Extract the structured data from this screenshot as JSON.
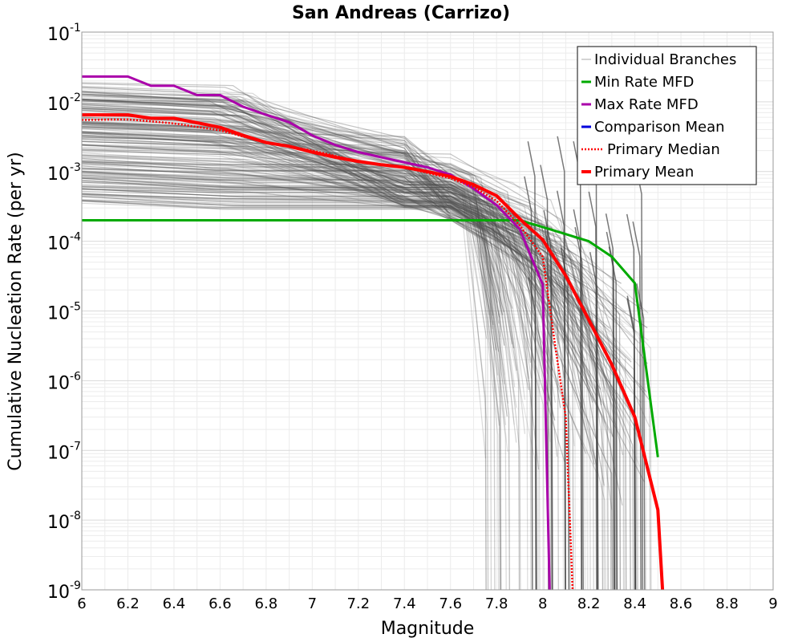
{
  "chart_data": {
    "type": "line",
    "title": "San Andreas (Carrizo)",
    "xlabel": "Magnitude",
    "ylabel": "Cumulative Nucleation Rate (per yr)",
    "yscale": "log",
    "xlim": [
      6,
      9
    ],
    "ylim": [
      1e-09,
      0.1
    ],
    "xticks": [
      "6",
      "6.2",
      "6.4",
      "6.6",
      "6.8",
      "7",
      "7.2",
      "7.4",
      "7.6",
      "7.8",
      "8",
      "8.2",
      "8.4",
      "8.6",
      "8.8",
      "9"
    ],
    "yticks": [
      {
        "base": "10",
        "exp": "-1"
      },
      {
        "base": "10",
        "exp": "-2"
      },
      {
        "base": "10",
        "exp": "-3"
      },
      {
        "base": "10",
        "exp": "-4"
      },
      {
        "base": "10",
        "exp": "-5"
      },
      {
        "base": "10",
        "exp": "-6"
      },
      {
        "base": "10",
        "exp": "-7"
      },
      {
        "base": "10",
        "exp": "-8"
      },
      {
        "base": "10",
        "exp": "-9"
      }
    ],
    "legend": {
      "position": "top-right",
      "entries": [
        "Individual Branches",
        "Min Rate MFD",
        "Max Rate MFD",
        "Comparison Mean",
        "Primary Median",
        "Primary Mean"
      ]
    },
    "branches_note": "Individual Branches: many grey logic-tree branch curves, rates ~3e-4 to 2e-2 at M6, falling off between M7.7 and M8.5",
    "series": [
      {
        "name": "Min Rate MFD",
        "color": "#00aa00",
        "style": "solid",
        "x": [
          6.0,
          7.9,
          8.0,
          8.2,
          8.3,
          8.4,
          8.5
        ],
        "y": [
          0.0002,
          0.0002,
          0.00016,
          0.0001,
          6e-05,
          2.5e-05,
          8e-08
        ]
      },
      {
        "name": "Max Rate MFD",
        "color": "#aa00aa",
        "style": "solid",
        "x": [
          6.0,
          6.2,
          6.3,
          6.4,
          6.5,
          6.6,
          6.7,
          6.8,
          6.9,
          7.0,
          7.1,
          7.2,
          7.3,
          7.4,
          7.5,
          7.6,
          7.7,
          7.8,
          7.9,
          8.0,
          8.03
        ],
        "y": [
          0.023,
          0.023,
          0.017,
          0.017,
          0.0125,
          0.0125,
          0.0085,
          0.0065,
          0.0051,
          0.0033,
          0.0024,
          0.0019,
          0.0016,
          0.00135,
          0.00115,
          0.0009,
          0.00057,
          0.00033,
          0.00015,
          2.4e-05,
          1e-09
        ]
      },
      {
        "name": "Comparison Mean",
        "color": "#0000dd",
        "style": "solid",
        "x": [],
        "y": []
      },
      {
        "name": "Primary Median",
        "color": "#ff0000",
        "style": "dotted",
        "x": [
          6.0,
          6.2,
          6.4,
          6.6,
          6.8,
          7.0,
          7.2,
          7.4,
          7.6,
          7.7,
          7.8,
          7.9,
          8.0,
          8.05,
          8.1,
          8.13
        ],
        "y": [
          0.0055,
          0.0056,
          0.0049,
          0.0039,
          0.0026,
          0.002,
          0.0014,
          0.00115,
          0.0008,
          0.0006,
          0.00038,
          0.00017,
          6e-05,
          4e-06,
          3e-07,
          1e-09
        ]
      },
      {
        "name": "Primary Mean",
        "color": "#ff0000",
        "style": "solid",
        "x": [
          6.0,
          6.2,
          6.3,
          6.4,
          6.5,
          6.6,
          6.7,
          6.8,
          6.9,
          7.0,
          7.1,
          7.2,
          7.3,
          7.4,
          7.5,
          7.6,
          7.7,
          7.8,
          7.9,
          8.0,
          8.1,
          8.2,
          8.3,
          8.4,
          8.5,
          8.52
        ],
        "y": [
          0.0065,
          0.0065,
          0.0058,
          0.0058,
          0.005,
          0.0043,
          0.0033,
          0.0026,
          0.0023,
          0.0019,
          0.0016,
          0.0014,
          0.00125,
          0.00115,
          0.001,
          0.00085,
          0.00065,
          0.00045,
          0.00021,
          0.000105,
          3.2e-05,
          7.5e-06,
          1.7e-06,
          3e-07,
          1.4e-08,
          1e-09
        ]
      }
    ]
  }
}
